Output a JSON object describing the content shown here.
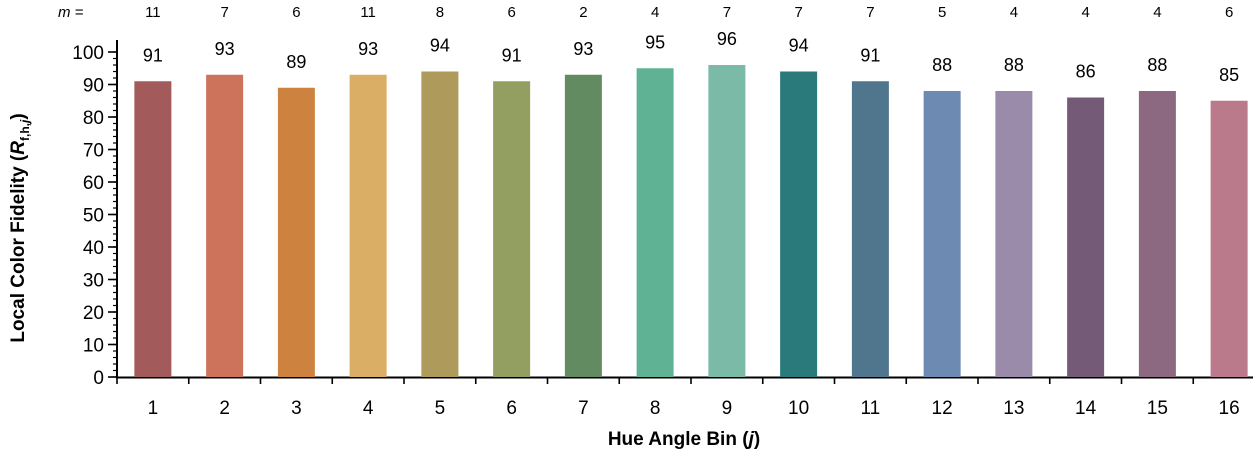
{
  "chart_data": {
    "type": "bar",
    "categories": [
      "1",
      "2",
      "3",
      "4",
      "5",
      "6",
      "7",
      "8",
      "9",
      "10",
      "11",
      "12",
      "13",
      "14",
      "15",
      "16"
    ],
    "values": [
      91,
      93,
      89,
      93,
      94,
      91,
      93,
      95,
      96,
      94,
      91,
      88,
      88,
      86,
      88,
      85
    ],
    "value_labels": [
      "91",
      "93",
      "89",
      "93",
      "94",
      "91",
      "93",
      "95",
      "96",
      "94",
      "91",
      "88",
      "88",
      "86",
      "88",
      "85"
    ],
    "m_prefix": "m =",
    "m_values": [
      "11",
      "7",
      "6",
      "11",
      "8",
      "6",
      "2",
      "4",
      "7",
      "7",
      "7",
      "5",
      "4",
      "4",
      "4",
      "6"
    ],
    "colors": [
      "#a35a5b",
      "#cd735c",
      "#cd833f",
      "#dbae66",
      "#ae9a5a",
      "#939f61",
      "#638b61",
      "#5fb394",
      "#7bbaa7",
      "#2a7a7c",
      "#4f768c",
      "#6d8ab3",
      "#9a8bab",
      "#745a77",
      "#8d6881",
      "#ba7a8b"
    ],
    "xlabel_main": "Hue Angle Bin (",
    "xlabel_var": "j",
    "xlabel_end": ")",
    "ylabel_main": "Local Color Fidelity (",
    "ylabel_var": "R",
    "ylabel_sub": "f,h,",
    "ylabel_sub_var": "j",
    "ylabel_end": ")",
    "ylim": [
      0,
      100
    ],
    "yticks": [
      "0",
      "10",
      "20",
      "30",
      "40",
      "50",
      "60",
      "70",
      "80",
      "90",
      "100"
    ],
    "grid": false,
    "legend": false
  }
}
